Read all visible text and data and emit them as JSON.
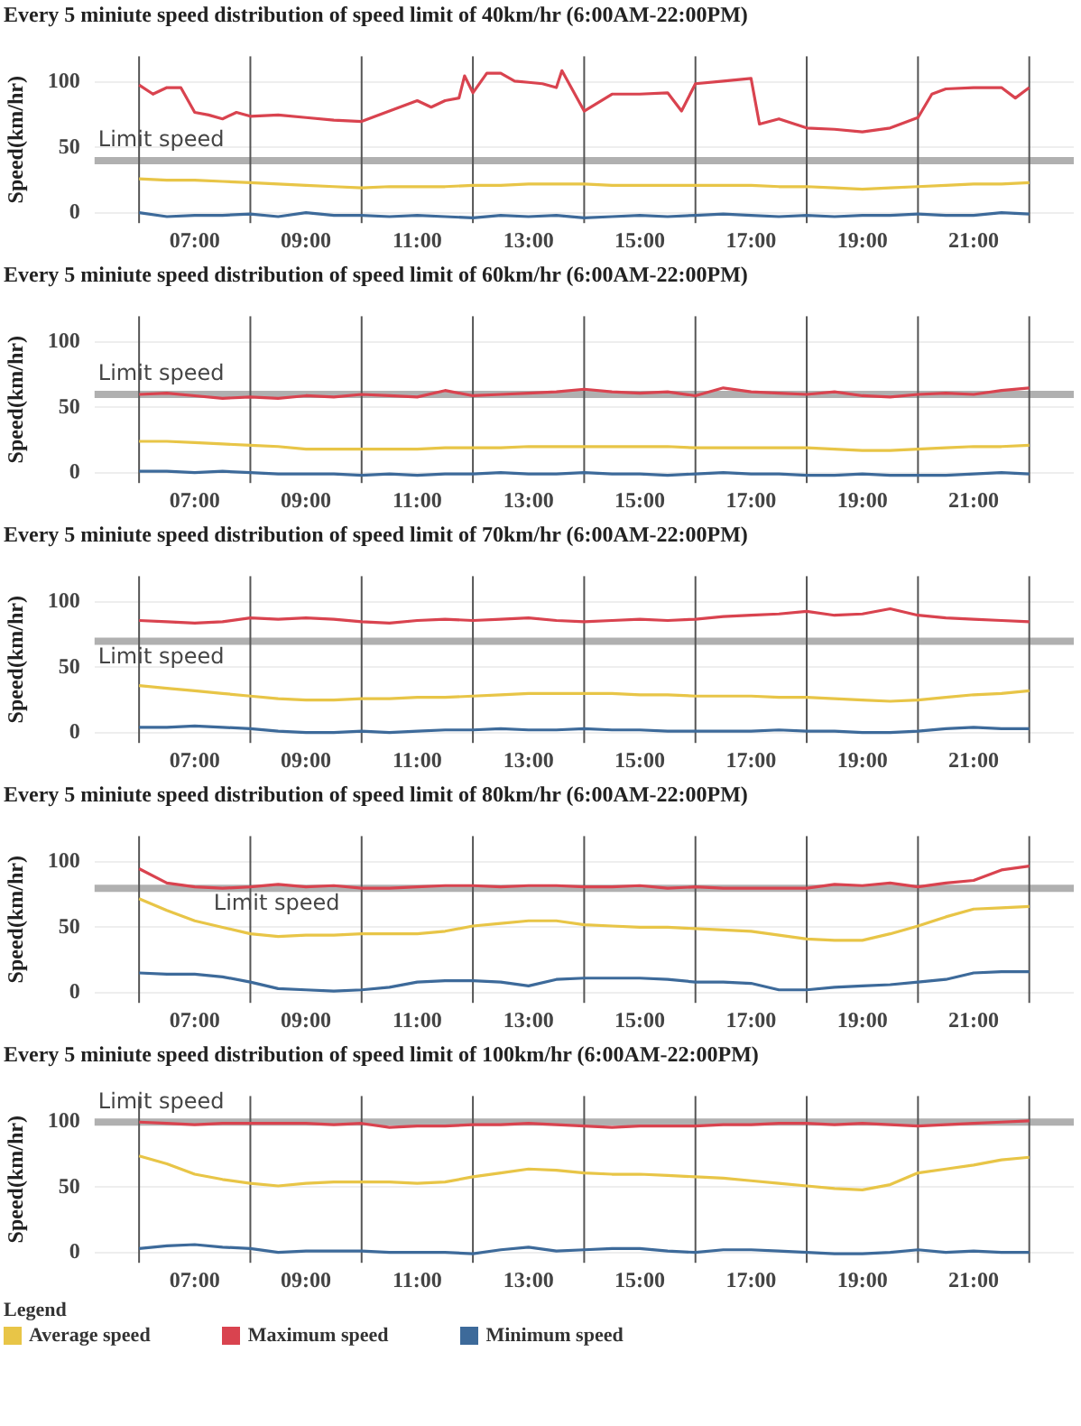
{
  "chart_data": [
    {
      "type": "line",
      "title": "Every 5 miniute speed distribution of speed limit of 40km/hr (6:00AM-22:00PM)",
      "ylabel": "Speed(km/hr)",
      "x": [
        6,
        6.5,
        7,
        7.5,
        8,
        8.5,
        9,
        9.5,
        10,
        10.5,
        11,
        11.5,
        12,
        12.5,
        13,
        13.5,
        14,
        14.5,
        15,
        15.5,
        16,
        16.5,
        17,
        17.5,
        18,
        18.5,
        19,
        19.5,
        20,
        20.5,
        21,
        21.5,
        22
      ],
      "series": [
        {
          "color": "#d9434f",
          "x": [
            6,
            6.25,
            6.5,
            6.75,
            7,
            7.25,
            7.5,
            7.75,
            8,
            8.5,
            9,
            9.5,
            10,
            10.5,
            11,
            11.25,
            11.5,
            11.75,
            11.85,
            12,
            12.25,
            12.5,
            12.75,
            13,
            13.25,
            13.5,
            13.6,
            14,
            14.5,
            15,
            15.5,
            15.75,
            16,
            16.5,
            17,
            17.15,
            17.5,
            18,
            18.5,
            19,
            19.5,
            20,
            20.25,
            20.5,
            21,
            21.5,
            21.75,
            22
          ],
          "values": [
            98,
            91,
            96,
            96,
            77,
            75,
            72,
            77,
            74,
            75,
            73,
            71,
            70,
            78,
            86,
            81,
            86,
            88,
            105,
            92,
            107,
            107,
            101,
            100,
            99,
            96,
            109,
            78,
            91,
            91,
            92,
            78,
            99,
            101,
            103,
            68,
            72,
            65,
            64,
            62,
            65,
            73,
            91,
            95,
            96,
            96,
            88,
            96
          ]
        },
        {
          "color": "#e8c547",
          "values": [
            26,
            25,
            25,
            24,
            23,
            22,
            21,
            20,
            19,
            20,
            20,
            20,
            21,
            21,
            22,
            22,
            22,
            21,
            21,
            21,
            21,
            21,
            21,
            20,
            20,
            19,
            18,
            19,
            20,
            21,
            22,
            22,
            23
          ]
        },
        {
          "color": "#3d6a9a",
          "values": [
            0,
            -3,
            -2,
            -2,
            -1,
            -3,
            0,
            -2,
            -2,
            -3,
            -2,
            -3,
            -4,
            -2,
            -3,
            -2,
            -4,
            -3,
            -2,
            -3,
            -2,
            -1,
            -2,
            -3,
            -2,
            -3,
            -2,
            -2,
            -1,
            -2,
            -2,
            0,
            -1
          ]
        }
      ],
      "xlim": [
        5.2,
        22.8
      ],
      "xticks": [
        {
          "value": 7,
          "label": "07:00"
        },
        {
          "value": 9,
          "label": "09:00"
        },
        {
          "value": 11,
          "label": "11:00"
        },
        {
          "value": 13,
          "label": "13:00"
        },
        {
          "value": 15,
          "label": "15:00"
        },
        {
          "value": 17,
          "label": "17:00"
        },
        {
          "value": 19,
          "label": "19:00"
        },
        {
          "value": 21,
          "label": "21:00"
        }
      ],
      "ylim": [
        -8,
        120
      ],
      "yticks": [
        0,
        50,
        100
      ],
      "grid": "y",
      "ref_lines": [
        {
          "axis": "y",
          "value": 40,
          "label": "Limit speed",
          "color": "#b0b0b0"
        },
        {
          "axis": "x",
          "value": 6,
          "color": "#555555"
        },
        {
          "axis": "x",
          "value": 8,
          "color": "#555555"
        },
        {
          "axis": "x",
          "value": 10,
          "color": "#555555"
        },
        {
          "axis": "x",
          "value": 12,
          "color": "#555555"
        },
        {
          "axis": "x",
          "value": 14,
          "color": "#555555"
        },
        {
          "axis": "x",
          "value": 16,
          "color": "#555555"
        },
        {
          "axis": "x",
          "value": 18,
          "color": "#555555"
        },
        {
          "axis": "x",
          "value": 20,
          "color": "#555555"
        },
        {
          "axis": "x",
          "value": 22,
          "color": "#555555"
        }
      ]
    },
    {
      "type": "line",
      "title": "Every 5 miniute speed distribution of speed limit of 60km/hr (6:00AM-22:00PM)",
      "ylabel": "Speed(km/hr)",
      "x": [
        6,
        6.5,
        7,
        7.5,
        8,
        8.5,
        9,
        9.5,
        10,
        10.5,
        11,
        11.5,
        12,
        12.5,
        13,
        13.5,
        14,
        14.5,
        15,
        15.5,
        16,
        16.5,
        17,
        17.5,
        18,
        18.5,
        19,
        19.5,
        20,
        20.5,
        21,
        21.5,
        22
      ],
      "series": [
        {
          "color": "#d9434f",
          "values": [
            60,
            61,
            59,
            57,
            58,
            57,
            59,
            58,
            60,
            59,
            58,
            63,
            59,
            60,
            61,
            62,
            64,
            62,
            61,
            62,
            59,
            65,
            62,
            61,
            60,
            62,
            59,
            58,
            60,
            61,
            60,
            63,
            65
          ]
        },
        {
          "color": "#e8c547",
          "values": [
            24,
            24,
            23,
            22,
            21,
            20,
            18,
            18,
            18,
            18,
            18,
            19,
            19,
            19,
            20,
            20,
            20,
            20,
            20,
            20,
            19,
            19,
            19,
            19,
            19,
            18,
            17,
            17,
            18,
            19,
            20,
            20,
            21
          ]
        },
        {
          "color": "#3d6a9a",
          "values": [
            1,
            1,
            0,
            1,
            0,
            -1,
            -1,
            -1,
            -2,
            -1,
            -2,
            -1,
            -1,
            0,
            -1,
            -1,
            0,
            -1,
            -1,
            -2,
            -1,
            0,
            -1,
            -1,
            -2,
            -2,
            -1,
            -2,
            -2,
            -2,
            -1,
            0,
            -1
          ]
        }
      ],
      "xlim": [
        5.2,
        22.8
      ],
      "xticks": [
        {
          "value": 7,
          "label": "07:00"
        },
        {
          "value": 9,
          "label": "09:00"
        },
        {
          "value": 11,
          "label": "11:00"
        },
        {
          "value": 13,
          "label": "13:00"
        },
        {
          "value": 15,
          "label": "15:00"
        },
        {
          "value": 17,
          "label": "17:00"
        },
        {
          "value": 19,
          "label": "19:00"
        },
        {
          "value": 21,
          "label": "21:00"
        }
      ],
      "ylim": [
        -8,
        120
      ],
      "yticks": [
        0,
        50,
        100
      ],
      "grid": "y",
      "ref_lines": [
        {
          "axis": "y",
          "value": 60,
          "label": "Limit speed",
          "color": "#b0b0b0"
        },
        {
          "axis": "x",
          "value": 6,
          "color": "#555555"
        },
        {
          "axis": "x",
          "value": 8,
          "color": "#555555"
        },
        {
          "axis": "x",
          "value": 10,
          "color": "#555555"
        },
        {
          "axis": "x",
          "value": 12,
          "color": "#555555"
        },
        {
          "axis": "x",
          "value": 14,
          "color": "#555555"
        },
        {
          "axis": "x",
          "value": 16,
          "color": "#555555"
        },
        {
          "axis": "x",
          "value": 18,
          "color": "#555555"
        },
        {
          "axis": "x",
          "value": 20,
          "color": "#555555"
        },
        {
          "axis": "x",
          "value": 22,
          "color": "#555555"
        }
      ]
    },
    {
      "type": "line",
      "title": "Every 5 miniute speed distribution of speed limit of 70km/hr (6:00AM-22:00PM)",
      "ylabel": "Speed(km/hr)",
      "x": [
        6,
        6.5,
        7,
        7.5,
        8,
        8.5,
        9,
        9.5,
        10,
        10.5,
        11,
        11.5,
        12,
        12.5,
        13,
        13.5,
        14,
        14.5,
        15,
        15.5,
        16,
        16.5,
        17,
        17.5,
        18,
        18.5,
        19,
        19.5,
        20,
        20.5,
        21,
        21.5,
        22
      ],
      "series": [
        {
          "color": "#d9434f",
          "values": [
            86,
            85,
            84,
            85,
            88,
            87,
            88,
            87,
            85,
            84,
            86,
            87,
            86,
            87,
            88,
            86,
            85,
            86,
            87,
            86,
            87,
            89,
            90,
            91,
            93,
            90,
            91,
            95,
            90,
            88,
            87,
            86,
            85
          ]
        },
        {
          "color": "#e8c547",
          "values": [
            36,
            34,
            32,
            30,
            28,
            26,
            25,
            25,
            26,
            26,
            27,
            27,
            28,
            29,
            30,
            30,
            30,
            30,
            29,
            29,
            28,
            28,
            28,
            27,
            27,
            26,
            25,
            24,
            25,
            27,
            29,
            30,
            32
          ]
        },
        {
          "color": "#3d6a9a",
          "values": [
            4,
            4,
            5,
            4,
            3,
            1,
            0,
            0,
            1,
            0,
            1,
            2,
            2,
            3,
            2,
            2,
            3,
            2,
            2,
            1,
            1,
            1,
            1,
            2,
            1,
            1,
            0,
            0,
            1,
            3,
            4,
            3,
            3
          ]
        }
      ],
      "xlim": [
        5.2,
        22.8
      ],
      "xticks": [
        {
          "value": 7,
          "label": "07:00"
        },
        {
          "value": 9,
          "label": "09:00"
        },
        {
          "value": 11,
          "label": "11:00"
        },
        {
          "value": 13,
          "label": "13:00"
        },
        {
          "value": 15,
          "label": "15:00"
        },
        {
          "value": 17,
          "label": "17:00"
        },
        {
          "value": 19,
          "label": "19:00"
        },
        {
          "value": 21,
          "label": "21:00"
        }
      ],
      "ylim": [
        -8,
        120
      ],
      "yticks": [
        0,
        50,
        100
      ],
      "grid": "y",
      "ref_lines": [
        {
          "axis": "y",
          "value": 70,
          "label": "Limit speed",
          "color": "#b0b0b0"
        },
        {
          "axis": "x",
          "value": 6,
          "color": "#555555"
        },
        {
          "axis": "x",
          "value": 8,
          "color": "#555555"
        },
        {
          "axis": "x",
          "value": 10,
          "color": "#555555"
        },
        {
          "axis": "x",
          "value": 12,
          "color": "#555555"
        },
        {
          "axis": "x",
          "value": 14,
          "color": "#555555"
        },
        {
          "axis": "x",
          "value": 16,
          "color": "#555555"
        },
        {
          "axis": "x",
          "value": 18,
          "color": "#555555"
        },
        {
          "axis": "x",
          "value": 20,
          "color": "#555555"
        },
        {
          "axis": "x",
          "value": 22,
          "color": "#555555"
        }
      ]
    },
    {
      "type": "line",
      "title": "Every 5 miniute speed distribution of speed limit of 80km/hr (6:00AM-22:00PM)",
      "ylabel": "Speed(km/hr)",
      "x": [
        6,
        6.5,
        7,
        7.5,
        8,
        8.5,
        9,
        9.5,
        10,
        10.5,
        11,
        11.5,
        12,
        12.5,
        13,
        13.5,
        14,
        14.5,
        15,
        15.5,
        16,
        16.5,
        17,
        17.5,
        18,
        18.5,
        19,
        19.5,
        20,
        20.5,
        21,
        21.5,
        22
      ],
      "series": [
        {
          "color": "#d9434f",
          "values": [
            95,
            84,
            81,
            80,
            81,
            83,
            81,
            82,
            80,
            80,
            81,
            82,
            82,
            81,
            82,
            82,
            81,
            81,
            82,
            80,
            81,
            80,
            80,
            80,
            80,
            83,
            82,
            84,
            81,
            84,
            86,
            94,
            97
          ]
        },
        {
          "color": "#e8c547",
          "values": [
            72,
            63,
            55,
            50,
            45,
            43,
            44,
            44,
            45,
            45,
            45,
            47,
            51,
            53,
            55,
            55,
            52,
            51,
            50,
            50,
            49,
            48,
            47,
            44,
            41,
            40,
            40,
            45,
            51,
            58,
            64,
            65,
            66
          ]
        },
        {
          "color": "#3d6a9a",
          "values": [
            15,
            14,
            14,
            12,
            8,
            3,
            2,
            1,
            2,
            4,
            8,
            9,
            9,
            8,
            5,
            10,
            11,
            11,
            11,
            10,
            8,
            8,
            7,
            2,
            2,
            4,
            5,
            6,
            8,
            10,
            15,
            16,
            16
          ]
        }
      ],
      "xlim": [
        5.2,
        22.8
      ],
      "xticks": [
        {
          "value": 7,
          "label": "07:00"
        },
        {
          "value": 9,
          "label": "09:00"
        },
        {
          "value": 11,
          "label": "11:00"
        },
        {
          "value": 13,
          "label": "13:00"
        },
        {
          "value": 15,
          "label": "15:00"
        },
        {
          "value": 17,
          "label": "17:00"
        },
        {
          "value": 19,
          "label": "19:00"
        },
        {
          "value": 21,
          "label": "21:00"
        }
      ],
      "ylim": [
        -8,
        120
      ],
      "yticks": [
        0,
        50,
        100
      ],
      "grid": "y",
      "ref_lines": [
        {
          "axis": "y",
          "value": 80,
          "label": "Limit speed",
          "color": "#b0b0b0"
        },
        {
          "axis": "x",
          "value": 6,
          "color": "#555555"
        },
        {
          "axis": "x",
          "value": 8,
          "color": "#555555"
        },
        {
          "axis": "x",
          "value": 10,
          "color": "#555555"
        },
        {
          "axis": "x",
          "value": 12,
          "color": "#555555"
        },
        {
          "axis": "x",
          "value": 14,
          "color": "#555555"
        },
        {
          "axis": "x",
          "value": 16,
          "color": "#555555"
        },
        {
          "axis": "x",
          "value": 18,
          "color": "#555555"
        },
        {
          "axis": "x",
          "value": 20,
          "color": "#555555"
        },
        {
          "axis": "x",
          "value": 22,
          "color": "#555555"
        }
      ]
    },
    {
      "type": "line",
      "title": "Every 5 miniute speed distribution of speed limit of 100km/hr (6:00AM-22:00PM)",
      "ylabel": "Speed(km/hr)",
      "legend": "bottom",
      "legend_title": "Legend",
      "x": [
        6,
        6.5,
        7,
        7.5,
        8,
        8.5,
        9,
        9.5,
        10,
        10.5,
        11,
        11.5,
        12,
        12.5,
        13,
        13.5,
        14,
        14.5,
        15,
        15.5,
        16,
        16.5,
        17,
        17.5,
        18,
        18.5,
        19,
        19.5,
        20,
        20.5,
        21,
        21.5,
        22
      ],
      "series": [
        {
          "name": "Maximum speed",
          "color": "#d9434f",
          "values": [
            100,
            99,
            98,
            99,
            99,
            99,
            99,
            98,
            99,
            96,
            97,
            97,
            98,
            98,
            99,
            98,
            97,
            96,
            97,
            97,
            97,
            98,
            98,
            99,
            99,
            98,
            99,
            98,
            97,
            98,
            99,
            100,
            101
          ]
        },
        {
          "name": "Average speed",
          "color": "#e8c547",
          "values": [
            74,
            68,
            60,
            56,
            53,
            51,
            53,
            54,
            54,
            54,
            53,
            54,
            58,
            61,
            64,
            63,
            61,
            60,
            60,
            59,
            58,
            57,
            55,
            53,
            51,
            49,
            48,
            52,
            61,
            64,
            67,
            71,
            73
          ]
        },
        {
          "name": "Minimum speed",
          "color": "#3d6a9a",
          "values": [
            3,
            5,
            6,
            4,
            3,
            0,
            1,
            1,
            1,
            0,
            0,
            0,
            -1,
            2,
            4,
            1,
            2,
            3,
            3,
            1,
            0,
            2,
            2,
            1,
            0,
            -1,
            -1,
            0,
            2,
            0,
            1,
            0,
            0
          ]
        }
      ],
      "xlim": [
        5.2,
        22.8
      ],
      "xticks": [
        {
          "value": 7,
          "label": "07:00"
        },
        {
          "value": 9,
          "label": "09:00"
        },
        {
          "value": 11,
          "label": "11:00"
        },
        {
          "value": 13,
          "label": "13:00"
        },
        {
          "value": 15,
          "label": "15:00"
        },
        {
          "value": 17,
          "label": "17:00"
        },
        {
          "value": 19,
          "label": "19:00"
        },
        {
          "value": 21,
          "label": "21:00"
        }
      ],
      "ylim": [
        -8,
        120
      ],
      "yticks": [
        0,
        50,
        100
      ],
      "grid": "y",
      "ref_lines": [
        {
          "axis": "y",
          "value": 100,
          "label": "Limit speed",
          "color": "#b0b0b0"
        },
        {
          "axis": "x",
          "value": 6,
          "color": "#555555"
        },
        {
          "axis": "x",
          "value": 8,
          "color": "#555555"
        },
        {
          "axis": "x",
          "value": 10,
          "color": "#555555"
        },
        {
          "axis": "x",
          "value": 12,
          "color": "#555555"
        },
        {
          "axis": "x",
          "value": 14,
          "color": "#555555"
        },
        {
          "axis": "x",
          "value": 16,
          "color": "#555555"
        },
        {
          "axis": "x",
          "value": 18,
          "color": "#555555"
        },
        {
          "axis": "x",
          "value": 20,
          "color": "#555555"
        },
        {
          "axis": "x",
          "value": 22,
          "color": "#555555"
        }
      ]
    }
  ]
}
